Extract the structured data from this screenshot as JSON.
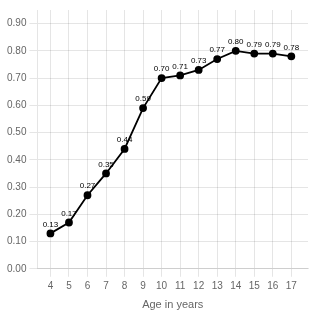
{
  "chart_data": {
    "type": "line",
    "xlabel": "Age in years",
    "x": [
      4,
      5,
      6,
      7,
      8,
      9,
      10,
      11,
      12,
      13,
      14,
      15,
      16,
      17
    ],
    "values": [
      0.13,
      0.17,
      0.27,
      0.35,
      0.44,
      0.59,
      0.7,
      0.71,
      0.73,
      0.77,
      0.8,
      0.79,
      0.79,
      0.78
    ],
    "value_labels": [
      "0.13",
      "0.17",
      "0.27",
      "0.35",
      "0.44",
      "0.59",
      "0.70",
      "0.71",
      "0.73",
      "0.77",
      "0.80",
      "0.79",
      "0.79",
      "0.78"
    ],
    "data_labels": true,
    "color": "#000000",
    "marker": "circle",
    "xlim": [
      3.3,
      17.9
    ],
    "xticks": [
      4,
      5,
      6,
      7,
      8,
      9,
      10,
      11,
      12,
      13,
      14,
      15,
      16,
      17
    ],
    "ylim": [
      0.0,
      0.95
    ],
    "yticks": [
      {
        "value": 0.0,
        "label": "0.00"
      },
      {
        "value": 0.1,
        "label": "0.10"
      },
      {
        "value": 0.2,
        "label": "0.20"
      },
      {
        "value": 0.3,
        "label": "0.30"
      },
      {
        "value": 0.4,
        "label": "0.40"
      },
      {
        "value": 0.5,
        "label": "0.50"
      },
      {
        "value": 0.6,
        "label": "0.60"
      },
      {
        "value": 0.7,
        "label": "0.70"
      },
      {
        "value": 0.8,
        "label": "0.80"
      },
      {
        "value": 0.9,
        "label": "0.90"
      }
    ],
    "grid": true
  }
}
